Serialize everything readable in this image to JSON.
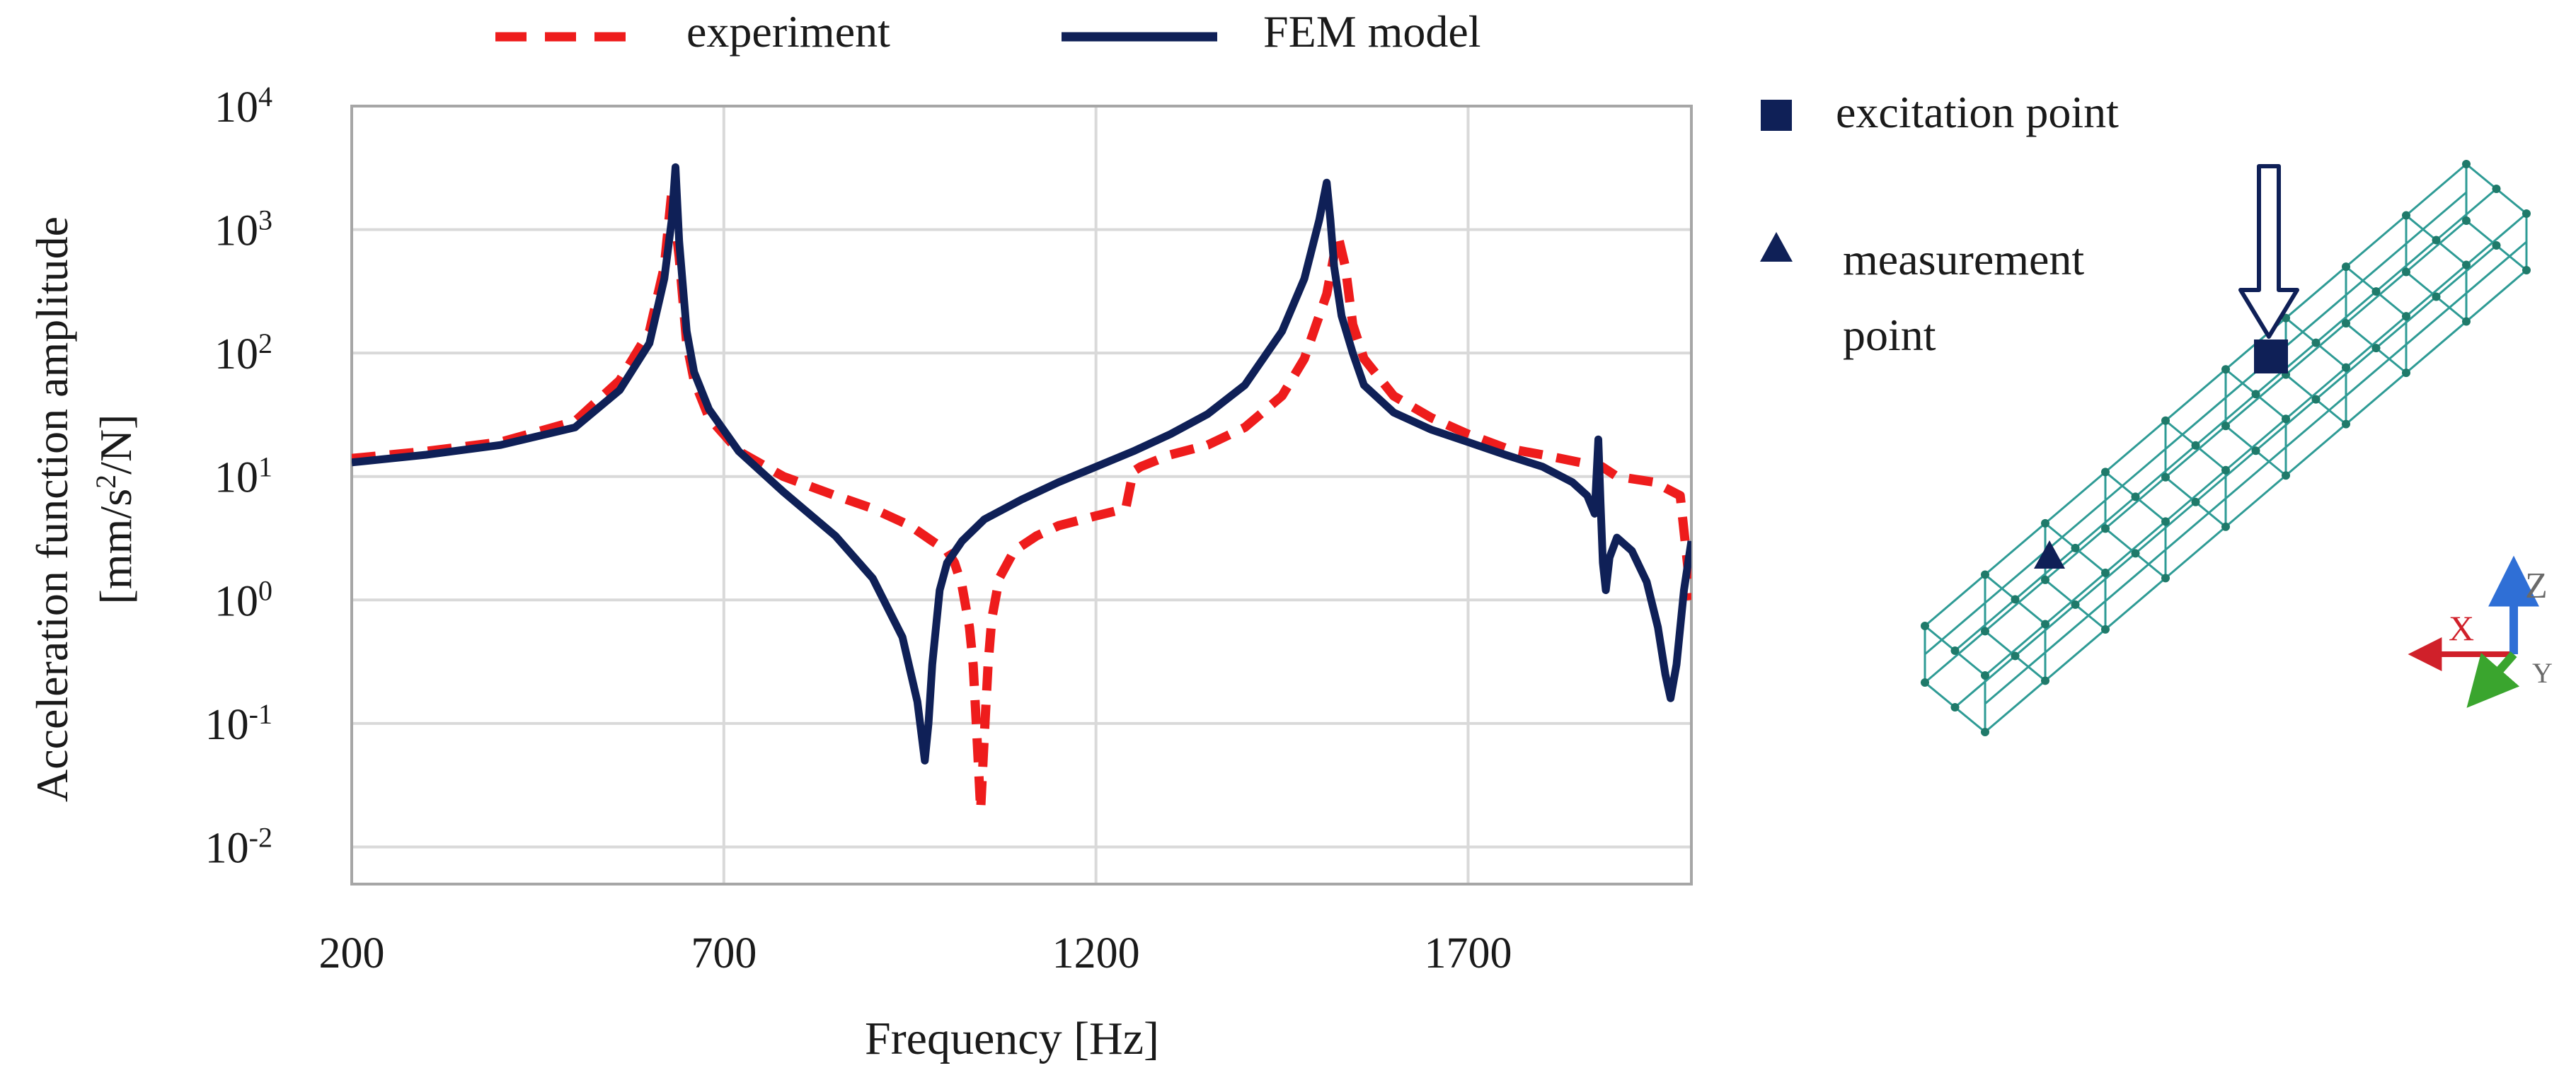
{
  "chart_data": {
    "type": "line",
    "title": "",
    "xlabel": "Frequency [Hz]",
    "ylabel_line1": "Acceleration function amplitude",
    "ylabel_line2_prefix": "[mm/s",
    "ylabel_line2_sup": "2",
    "ylabel_line2_suffix": "/N]",
    "xlim": [
      200,
      2000
    ],
    "ylim": [
      0.005,
      10000
    ],
    "yscale": "log",
    "grid": true,
    "legend_position": "top",
    "x_ticks": [
      {
        "value": 200,
        "label": "200"
      },
      {
        "value": 700,
        "label": "700"
      },
      {
        "value": 1200,
        "label": "1200"
      },
      {
        "value": 1700,
        "label": "1700"
      }
    ],
    "y_ticks": [
      {
        "value": 10000,
        "base": "10",
        "exp": "4"
      },
      {
        "value": 1000,
        "base": "10",
        "exp": "3"
      },
      {
        "value": 100,
        "base": "10",
        "exp": "2"
      },
      {
        "value": 10,
        "base": "10",
        "exp": "1"
      },
      {
        "value": 1,
        "base": "10",
        "exp": "0"
      },
      {
        "value": 0.1,
        "base": "10",
        "exp": "-1"
      },
      {
        "value": 0.01,
        "base": "10",
        "exp": "-2"
      }
    ],
    "series": [
      {
        "name": "experiment",
        "color": "#ee1c1c",
        "style": "dashed",
        "x": [
          200,
          300,
          400,
          500,
          560,
          600,
          620,
          630,
          640,
          650,
          660,
          680,
          720,
          780,
          850,
          900,
          950,
          980,
          1000,
          1010,
          1020,
          1030,
          1035,
          1040,
          1045,
          1050,
          1055,
          1060,
          1070,
          1090,
          1120,
          1150,
          1200,
          1240,
          1250,
          1260,
          1300,
          1350,
          1400,
          1450,
          1480,
          1510,
          1525,
          1535,
          1545,
          1560,
          1600,
          1650,
          1700,
          1750,
          1800,
          1850,
          1880,
          1900,
          1950,
          1985,
          2000
        ],
        "y": [
          14,
          16,
          19,
          28,
          60,
          150,
          500,
          2000,
          600,
          120,
          60,
          30,
          16,
          10,
          7,
          5.5,
          4,
          3,
          2.5,
          2,
          1.3,
          0.6,
          0.3,
          0.08,
          0.02,
          0.08,
          0.3,
          0.7,
          1.5,
          2.5,
          3.3,
          4,
          4.8,
          5.5,
          11,
          12,
          15,
          18,
          25,
          45,
          90,
          300,
          900,
          500,
          170,
          90,
          45,
          30,
          22,
          17,
          15,
          13,
          12,
          10,
          9,
          7,
          1
        ]
      },
      {
        "name": "FEM model",
        "color": "#0f2057",
        "style": "solid",
        "x": [
          200,
          300,
          400,
          500,
          560,
          600,
          620,
          630,
          635,
          640,
          650,
          660,
          680,
          720,
          780,
          850,
          900,
          940,
          960,
          970,
          975,
          980,
          990,
          1000,
          1020,
          1050,
          1100,
          1150,
          1200,
          1250,
          1300,
          1350,
          1400,
          1450,
          1480,
          1500,
          1510,
          1515,
          1520,
          1530,
          1545,
          1560,
          1600,
          1650,
          1700,
          1750,
          1800,
          1840,
          1860,
          1870,
          1875,
          1878,
          1881,
          1885,
          1890,
          1900,
          1920,
          1940,
          1955,
          1965,
          1972,
          1980,
          1990,
          2000
        ],
        "y": [
          13,
          15,
          18,
          25,
          50,
          120,
          400,
          1200,
          3200,
          800,
          150,
          70,
          35,
          16,
          7.5,
          3.3,
          1.5,
          0.5,
          0.15,
          0.05,
          0.1,
          0.3,
          1.2,
          2,
          3,
          4.5,
          6.5,
          9,
          12,
          16,
          22,
          32,
          55,
          150,
          400,
          1200,
          2400,
          1200,
          500,
          200,
          100,
          55,
          33,
          24,
          19,
          15,
          12,
          9,
          7,
          5,
          20,
          6,
          2,
          1.2,
          2.2,
          3.2,
          2.5,
          1.4,
          0.6,
          0.25,
          0.16,
          0.3,
          1.2,
          3
        ]
      }
    ]
  },
  "legend": [
    {
      "label": "experiment",
      "color": "#ee1c1c",
      "style": "dashed"
    },
    {
      "label": "FEM model",
      "color": "#0f2057",
      "style": "solid"
    }
  ],
  "model_legend": {
    "excitation_label": "excitation point",
    "measurement_label_line1": "measurement",
    "measurement_label_line2": "point",
    "marker_color": "#0f2057"
  },
  "mesh": {
    "color": "#2e9b95",
    "node_color": "#1f7a6a"
  },
  "axes_triad": {
    "x_label": "X",
    "y_label": "Y",
    "z_label": "Z",
    "x_color": "#d0202a",
    "y_color": "#3aa52e",
    "z_color": "#2f6fd6"
  }
}
